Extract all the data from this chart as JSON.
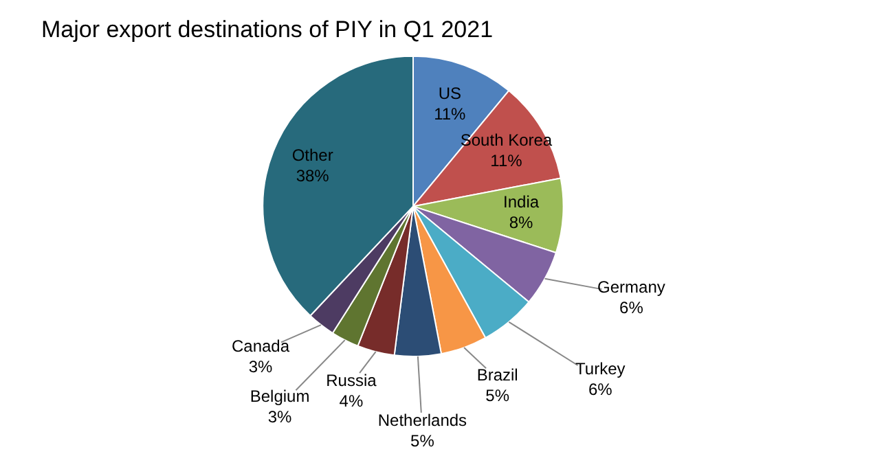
{
  "chart_data": {
    "type": "pie",
    "title": "Major export destinations of PIY in Q1 2021",
    "categories": [
      "US",
      "South Korea",
      "India",
      "Germany",
      "Turkey",
      "Brazil",
      "Netherlands",
      "Russia",
      "Belgium",
      "Canada",
      "Other"
    ],
    "values": [
      11,
      11,
      8,
      6,
      6,
      5,
      5,
      4,
      3,
      3,
      38
    ],
    "colors": [
      "#4f81bd",
      "#c0504d",
      "#9bbb59",
      "#8064a2",
      "#4bacc6",
      "#f79646",
      "#2c4d75",
      "#772c2a",
      "#5f7530",
      "#4d3b62",
      "#276a7c"
    ],
    "value_labels": [
      "11%",
      "11%",
      "8%",
      "6%",
      "6%",
      "5%",
      "5%",
      "4%",
      "3%",
      "3%",
      "38%"
    ],
    "legend": false
  }
}
